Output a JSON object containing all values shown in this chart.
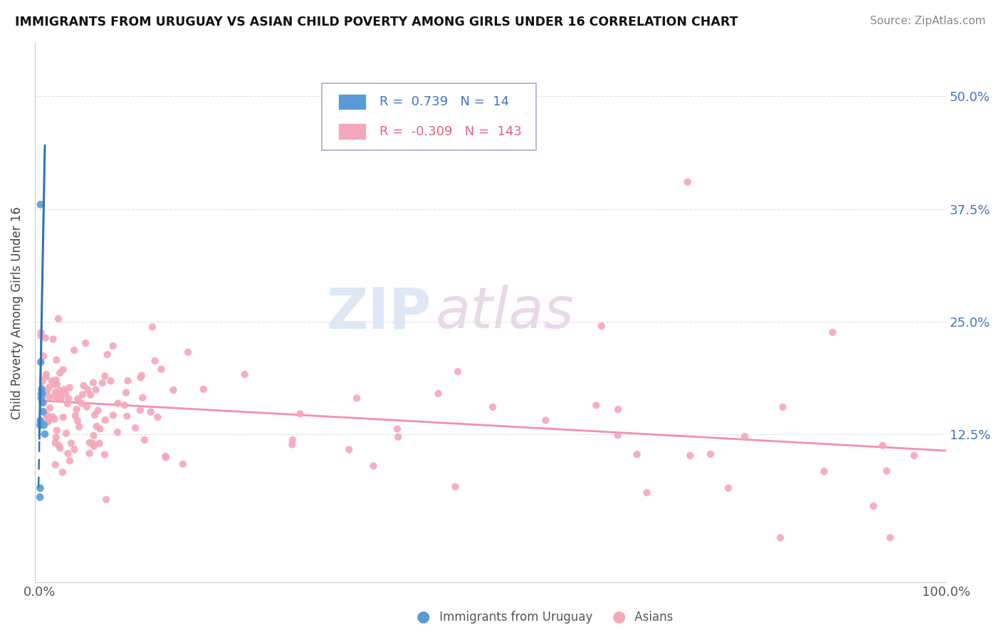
{
  "title": "IMMIGRANTS FROM URUGUAY VS ASIAN CHILD POVERTY AMONG GIRLS UNDER 16 CORRELATION CHART",
  "source": "Source: ZipAtlas.com",
  "ylabel": "Child Poverty Among Girls Under 16",
  "xlim": [
    -0.005,
    1.0
  ],
  "ylim": [
    -0.04,
    0.56
  ],
  "ytick_vals": [
    0.125,
    0.25,
    0.375,
    0.5
  ],
  "ytick_labels": [
    "12.5%",
    "25.0%",
    "37.5%",
    "50.0%"
  ],
  "blue_color": "#5b9bd5",
  "blue_line_color": "#2e75b6",
  "pink_color": "#f4a7b9",
  "pink_line_color": "#f48fb1",
  "legend_blue_R": "0.739",
  "legend_blue_N": "14",
  "legend_pink_R": "-0.309",
  "legend_pink_N": "143",
  "watermark_zip": "ZIP",
  "watermark_atlas": "atlas",
  "grid_color": "#e0e0e0"
}
